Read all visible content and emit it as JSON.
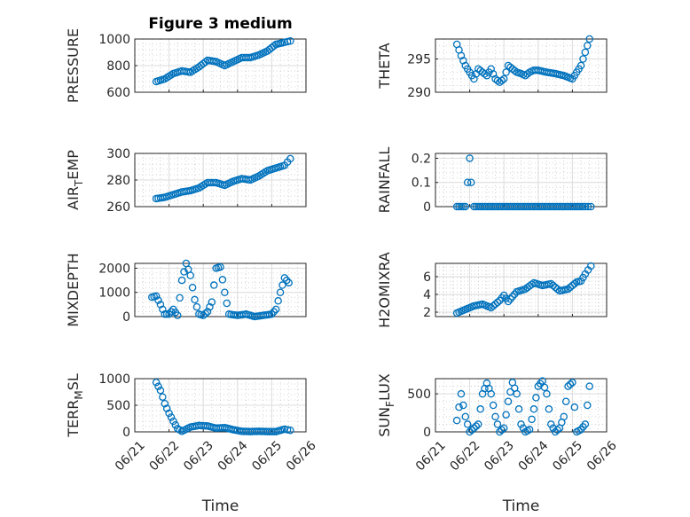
{
  "chart_data": [
    {
      "id": "pressure",
      "type": "scatter",
      "title": "Figure 3 medium",
      "ylabel": "PRESSURE",
      "ylabel_sub": "",
      "ylabel_tail": "",
      "xlabel": "",
      "ylim": [
        600,
        1000
      ],
      "yticks": [
        600,
        800,
        1000
      ],
      "grid": true,
      "minor_grid": true,
      "color": "#0072BD",
      "x": [
        "06/21 15:00",
        "06/21 21:00",
        "06/22 03:00",
        "06/22 09:00",
        "06/22 15:00",
        "06/22 21:00",
        "06/23 03:00",
        "06/23 09:00",
        "06/23 15:00",
        "06/23 21:00",
        "06/24 03:00",
        "06/24 09:00",
        "06/24 15:00",
        "06/24 21:00",
        "06/25 03:00",
        "06/25 09:00",
        "06/25 13:00"
      ],
      "y": [
        680,
        700,
        740,
        760,
        750,
        790,
        840,
        830,
        800,
        830,
        860,
        860,
        880,
        910,
        960,
        975,
        985
      ]
    },
    {
      "id": "theta",
      "type": "scatter",
      "title": "",
      "ylabel": "THETA",
      "ylabel_sub": "",
      "ylabel_tail": "",
      "xlabel": "",
      "ylim": [
        290,
        298
      ],
      "yticks": [
        290,
        295
      ],
      "grid": true,
      "minor_grid": true,
      "color": "#0072BD",
      "x": [
        "06/21 15:00",
        "06/21 18:00",
        "06/21 21:00",
        "06/22 00:00",
        "06/22 03:00",
        "06/22 06:00",
        "06/22 09:00",
        "06/22 12:00",
        "06/22 15:00",
        "06/22 18:00",
        "06/22 21:00",
        "06/23 00:00",
        "06/23 03:00",
        "06/23 06:00",
        "06/23 09:00",
        "06/23 12:00",
        "06/23 15:00",
        "06/23 18:00",
        "06/23 21:00",
        "06/24 00:00",
        "06/24 06:00",
        "06/24 12:00",
        "06/24 18:00",
        "06/25 00:00",
        "06/25 06:00",
        "06/25 09:00",
        "06/25 12:00"
      ],
      "y": [
        297.2,
        295.5,
        294.0,
        293.0,
        292.0,
        293.5,
        293.0,
        292.5,
        293.5,
        292.0,
        291.5,
        292.0,
        294.0,
        293.5,
        293.0,
        292.8,
        292.5,
        293.0,
        293.3,
        293.3,
        293.0,
        292.8,
        292.5,
        292.0,
        294.0,
        296.0,
        298.0
      ]
    },
    {
      "id": "air-temp",
      "type": "scatter",
      "title": "",
      "ylabel": "AIR",
      "ylabel_sub": "T",
      "ylabel_tail": "EMP",
      "xlabel": "",
      "ylim": [
        260,
        300
      ],
      "yticks": [
        260,
        280,
        300
      ],
      "grid": true,
      "minor_grid": true,
      "color": "#0072BD",
      "x": [
        "06/21 15:00",
        "06/21 21:00",
        "06/22 03:00",
        "06/22 09:00",
        "06/22 15:00",
        "06/22 21:00",
        "06/23 03:00",
        "06/23 09:00",
        "06/23 15:00",
        "06/23 21:00",
        "06/24 03:00",
        "06/24 09:00",
        "06/24 15:00",
        "06/24 21:00",
        "06/25 03:00",
        "06/25 09:00",
        "06/25 13:00"
      ],
      "y": [
        266,
        267,
        269,
        271,
        272,
        274,
        278,
        278,
        276,
        279,
        281,
        280,
        283,
        287,
        289,
        291,
        296
      ]
    },
    {
      "id": "rainfall",
      "type": "scatter",
      "title": "",
      "ylabel": "RAINFALL",
      "ylabel_sub": "",
      "ylabel_tail": "",
      "xlabel": "",
      "ylim": [
        0,
        0.22
      ],
      "yticks": [
        0,
        0.1,
        0.2
      ],
      "grid": true,
      "minor_grid": true,
      "color": "#0072BD",
      "x": [
        "06/21 15:00",
        "06/21 21:00",
        "06/22 00:00",
        "06/22 01:00",
        "06/22 03:00",
        "06/22 09:00",
        "06/22 15:00",
        "06/22 21:00",
        "06/23 03:00",
        "06/23 09:00",
        "06/23 15:00",
        "06/23 21:00",
        "06/24 03:00",
        "06/24 09:00",
        "06/24 15:00",
        "06/24 21:00",
        "06/25 03:00",
        "06/25 09:00",
        "06/25 13:00"
      ],
      "y": [
        0,
        0,
        0.2,
        0.1,
        0,
        0,
        0,
        0,
        0,
        0,
        0,
        0,
        0,
        0,
        0,
        0,
        0,
        0,
        0
      ]
    },
    {
      "id": "mixdepth",
      "type": "scatter",
      "title": "",
      "ylabel": "MIXDEPTH",
      "ylabel_sub": "",
      "ylabel_tail": "",
      "xlabel": "",
      "ylim": [
        0,
        2200
      ],
      "yticks": [
        0,
        1000,
        2000
      ],
      "grid": true,
      "minor_grid": true,
      "color": "#0072BD",
      "x": [
        "06/21 12:00",
        "06/21 15:00",
        "06/21 18:00",
        "06/21 21:00",
        "06/22 00:00",
        "06/22 03:00",
        "06/22 06:00",
        "06/22 09:00",
        "06/22 12:00",
        "06/22 15:00",
        "06/22 18:00",
        "06/22 21:00",
        "06/23 00:00",
        "06/23 03:00",
        "06/23 06:00",
        "06/23 09:00",
        "06/23 12:00",
        "06/23 15:00",
        "06/23 18:00",
        "06/24 00:00",
        "06/24 06:00",
        "06/24 12:00",
        "06/24 18:00",
        "06/25 00:00",
        "06/25 03:00",
        "06/25 06:00",
        "06/25 09:00",
        "06/25 12:00"
      ],
      "y": [
        800,
        850,
        500,
        100,
        100,
        300,
        50,
        1500,
        2200,
        1700,
        700,
        100,
        50,
        200,
        600,
        2000,
        2050,
        1000,
        100,
        50,
        100,
        0,
        50,
        100,
        300,
        1000,
        1600,
        1400
      ]
    },
    {
      "id": "h2omixra",
      "type": "scatter",
      "title": "",
      "ylabel": "H2OMIXRA",
      "ylabel_sub": "",
      "ylabel_tail": "",
      "xlabel": "",
      "ylim": [
        1.5,
        7.5
      ],
      "yticks": [
        2,
        4,
        6
      ],
      "grid": true,
      "minor_grid": true,
      "color": "#0072BD",
      "x": [
        "06/21 15:00",
        "06/21 21:00",
        "06/22 03:00",
        "06/22 09:00",
        "06/22 15:00",
        "06/22 21:00",
        "06/23 00:00",
        "06/23 03:00",
        "06/23 09:00",
        "06/23 15:00",
        "06/23 21:00",
        "06/24 03:00",
        "06/24 09:00",
        "06/24 15:00",
        "06/24 21:00",
        "06/25 03:00",
        "06/25 06:00",
        "06/25 09:00",
        "06/25 13:00"
      ],
      "y": [
        1.9,
        2.3,
        2.7,
        2.9,
        2.5,
        3.3,
        3.9,
        3.2,
        4.3,
        4.6,
        5.3,
        5.0,
        5.2,
        4.4,
        4.6,
        5.4,
        5.5,
        6.3,
        7.2
      ]
    },
    {
      "id": "terr-msl",
      "type": "scatter",
      "title": "",
      "ylabel": "TERR",
      "ylabel_sub": "M",
      "ylabel_tail": "SL",
      "xlabel": "Time",
      "ylim": [
        0,
        1000
      ],
      "yticks": [
        0,
        500,
        1000
      ],
      "xtick_labels": [
        "06/21",
        "06/22",
        "06/23",
        "06/24",
        "06/25",
        "06/26"
      ],
      "grid": true,
      "minor_grid": true,
      "color": "#0072BD",
      "x": [
        "06/21 15:00",
        "06/21 18:00",
        "06/21 21:00",
        "06/22 00:00",
        "06/22 03:00",
        "06/22 06:00",
        "06/22 09:00",
        "06/22 15:00",
        "06/22 21:00",
        "06/23 03:00",
        "06/23 09:00",
        "06/23 15:00",
        "06/23 21:00",
        "06/24 03:00",
        "06/24 09:00",
        "06/24 15:00",
        "06/24 21:00",
        "06/25 03:00",
        "06/25 09:00",
        "06/25 13:00"
      ],
      "y": [
        930,
        780,
        530,
        350,
        200,
        60,
        10,
        90,
        120,
        110,
        70,
        80,
        40,
        10,
        5,
        10,
        5,
        5,
        50,
        30
      ]
    },
    {
      "id": "sun-flux",
      "type": "scatter",
      "title": "",
      "ylabel": "SUN",
      "ylabel_sub": "F",
      "ylabel_tail": "LUX",
      "xlabel": "Time",
      "ylim": [
        0,
        700
      ],
      "yticks": [
        0,
        500
      ],
      "xtick_labels": [
        "06/21",
        "06/22",
        "06/23",
        "06/24",
        "06/25",
        "06/26"
      ],
      "grid": true,
      "minor_grid": true,
      "color": "#0072BD",
      "x": [
        "06/21 15:00",
        "06/21 18:00",
        "06/21 21:00",
        "06/22 00:00",
        "06/22 03:00",
        "06/22 06:00",
        "06/22 09:00",
        "06/22 12:00",
        "06/22 15:00",
        "06/22 18:00",
        "06/22 21:00",
        "06/23 00:00",
        "06/23 03:00",
        "06/23 06:00",
        "06/23 09:00",
        "06/23 12:00",
        "06/23 15:00",
        "06/23 18:00",
        "06/23 21:00",
        "06/24 00:00",
        "06/24 03:00",
        "06/24 06:00",
        "06/24 09:00",
        "06/24 12:00",
        "06/24 15:00",
        "06/24 18:00",
        "06/24 21:00",
        "06/25 00:00",
        "06/25 03:00",
        "06/25 06:00",
        "06/25 09:00",
        "06/25 12:00"
      ],
      "y": [
        150,
        500,
        200,
        0,
        50,
        100,
        500,
        640,
        500,
        200,
        0,
        50,
        400,
        650,
        500,
        100,
        0,
        30,
        300,
        600,
        670,
        500,
        100,
        0,
        50,
        200,
        600,
        650,
        0,
        30,
        100,
        600
      ]
    }
  ]
}
